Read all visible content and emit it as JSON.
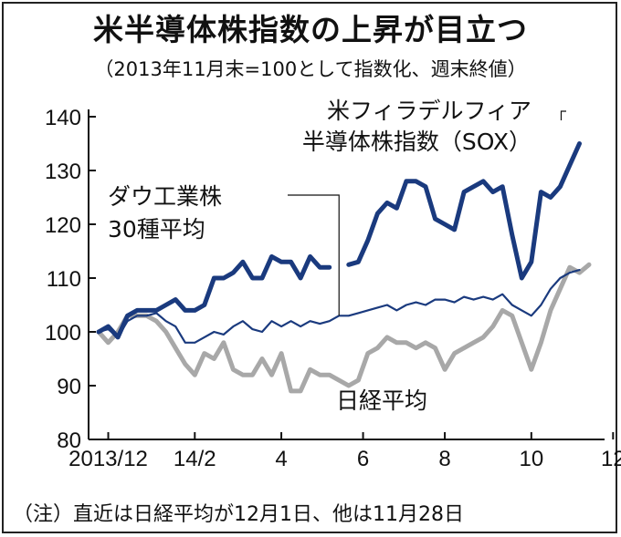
{
  "chart_data": {
    "type": "line",
    "title": "米半導体株指数の上昇が目立つ",
    "subtitle": "（2013年11月末=100として指数化、週末終値）",
    "note": "（注）直近は日経平均が12月1日、他は11月28日",
    "ylim": [
      80,
      140
    ],
    "yticks": [
      80,
      90,
      100,
      110,
      120,
      130,
      140
    ],
    "xlim": [
      0,
      56
    ],
    "xticks": [
      {
        "x": 1,
        "label": "2013/12"
      },
      {
        "x": 10,
        "label": "14/2"
      },
      {
        "x": 19,
        "label": "4"
      },
      {
        "x": 27.5,
        "label": "6"
      },
      {
        "x": 36,
        "label": "8"
      },
      {
        "x": 45,
        "label": "10"
      },
      {
        "x": 53.5,
        "label": "12"
      }
    ],
    "series": [
      {
        "name": "米フィラデルフィア半導体株指数（SOX）",
        "label_lines": [
          "米フィラデルフィア",
          "半導体株指数（SOX）"
        ],
        "color": "#1a3a7e",
        "width": "bold",
        "x": [
          0,
          1,
          2,
          3,
          4,
          5,
          6,
          7,
          8,
          9,
          10,
          11,
          12,
          13,
          14,
          15,
          16,
          17,
          18,
          19,
          20,
          21,
          22,
          23,
          24,
          25,
          26,
          27,
          28,
          29,
          30,
          31,
          32,
          33,
          34,
          35,
          36,
          37,
          38,
          39,
          40,
          41,
          42,
          43,
          44,
          45,
          46,
          47,
          48,
          49,
          50
        ],
        "values": [
          100,
          101,
          99,
          103,
          104,
          104,
          104,
          105,
          106,
          104,
          104,
          105,
          110,
          110,
          111,
          113,
          110,
          110,
          114,
          113,
          113,
          110,
          114,
          112,
          112,
          null,
          112.5,
          113,
          117,
          122,
          124,
          123,
          128,
          128,
          127,
          121,
          120,
          119,
          126,
          127,
          128,
          126,
          127,
          118,
          110,
          113,
          126,
          125,
          127,
          131,
          135
        ]
      },
      {
        "name": "ダウ工業株30種平均",
        "label_lines": [
          "ダウ工業株",
          "30種平均"
        ],
        "color": "#1a3a7e",
        "width": "thin",
        "x": [
          0,
          1,
          2,
          3,
          4,
          5,
          6,
          7,
          8,
          9,
          10,
          11,
          12,
          13,
          14,
          15,
          16,
          17,
          18,
          19,
          20,
          21,
          22,
          23,
          24,
          25,
          26,
          27,
          28,
          29,
          30,
          31,
          32,
          33,
          34,
          35,
          36,
          37,
          38,
          39,
          40,
          41,
          42,
          43,
          44,
          45,
          46,
          47,
          48,
          49,
          50
        ],
        "values": [
          100,
          100.5,
          99,
          102,
          103,
          103,
          103.5,
          102,
          101,
          98,
          98,
          99,
          100,
          99.5,
          101,
          102,
          100.5,
          100,
          102,
          101,
          102,
          101,
          102,
          101.5,
          102,
          103,
          103,
          103.5,
          104,
          104.5,
          105,
          104,
          105,
          105.5,
          105,
          106,
          106,
          105.5,
          106.5,
          106,
          106.5,
          106,
          107,
          105,
          104,
          103,
          105,
          108,
          110,
          111,
          111.5
        ]
      },
      {
        "name": "日経平均",
        "label_lines": [
          "日経平均"
        ],
        "color": "#a8a8a8",
        "width": "bold",
        "x": [
          0,
          1,
          2,
          3,
          4,
          5,
          6,
          7,
          8,
          9,
          10,
          11,
          12,
          13,
          14,
          15,
          16,
          17,
          18,
          19,
          20,
          21,
          22,
          23,
          24,
          25,
          26,
          27,
          28,
          29,
          30,
          31,
          32,
          33,
          34,
          35,
          36,
          37,
          38,
          39,
          40,
          41,
          42,
          43,
          44,
          45,
          46,
          47,
          48,
          49,
          50,
          51
        ],
        "values": [
          100,
          98,
          100,
          103,
          103,
          103,
          102,
          100,
          97,
          94,
          92,
          96,
          95,
          98,
          93,
          92,
          92,
          95,
          92,
          96,
          89,
          89,
          93,
          92,
          92,
          91,
          90,
          91,
          96,
          97,
          99,
          98,
          98,
          97,
          98,
          97,
          93,
          96,
          97,
          98,
          99,
          101,
          104,
          103,
          98,
          93,
          98,
          104,
          108,
          112,
          111,
          112.5
        ]
      }
    ]
  }
}
